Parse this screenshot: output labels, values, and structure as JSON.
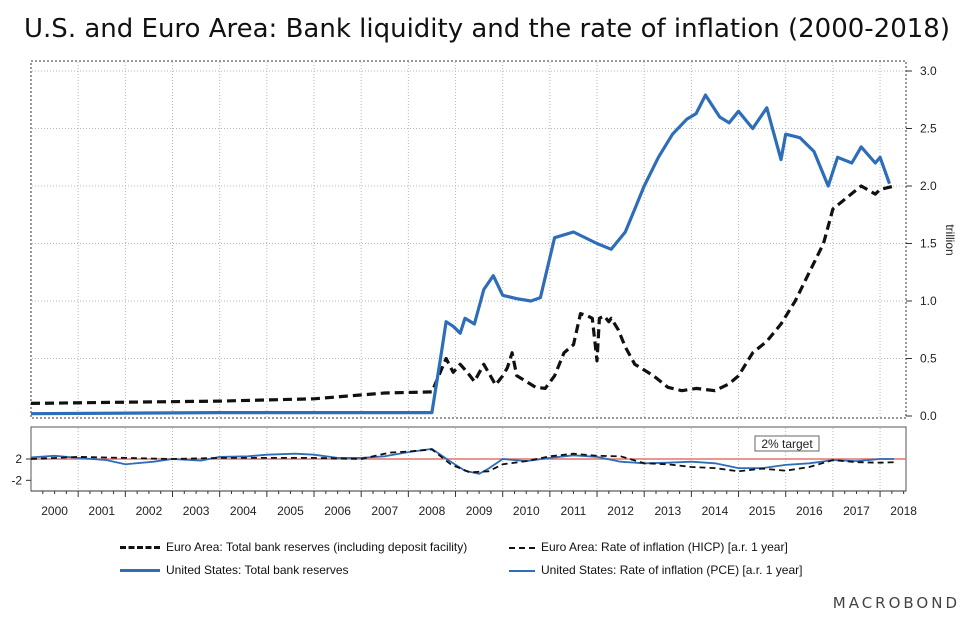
{
  "chart_data": {
    "type": "line",
    "title": "U.S. and Euro Area: Bank liquidity and the rate of inflation (2000-2018)",
    "colors": {
      "euro": "#111111",
      "us": "#2e6db8",
      "target": "#e0756f",
      "grid": "#b8b8b8"
    },
    "top_panel": {
      "ylabel": "trillion",
      "ylim": [
        0,
        3.0
      ],
      "yticks": [
        "0.0",
        "0.5",
        "1.0",
        "1.5",
        "2.0",
        "2.5",
        "3.0"
      ],
      "series": [
        {
          "name": "Euro Area: Total bank reserves (including deposit facility)",
          "style": "dashed-thick",
          "x": [
            2000,
            2002,
            2004,
            2006,
            2007.5,
            2008.5,
            2008.8,
            2008.95,
            2009.1,
            2009.25,
            2009.4,
            2009.6,
            2009.85,
            2010.0,
            2010.1,
            2010.2,
            2010.3,
            2010.5,
            2010.7,
            2010.9,
            2011.1,
            2011.3,
            2011.5,
            2011.65,
            2011.8,
            2011.9,
            2012.0,
            2012.05,
            2012.15,
            2012.25,
            2012.3,
            2012.45,
            2012.6,
            2012.8,
            2013.0,
            2013.2,
            2013.5,
            2013.8,
            2014.1,
            2014.5,
            2014.8,
            2015.0,
            2015.3,
            2015.6,
            2015.9,
            2016.2,
            2016.5,
            2016.8,
            2017.0,
            2017.3,
            2017.6,
            2017.9,
            2018.0,
            2018.3
          ],
          "values": [
            0.11,
            0.12,
            0.13,
            0.15,
            0.2,
            0.21,
            0.5,
            0.38,
            0.45,
            0.38,
            0.3,
            0.45,
            0.27,
            0.35,
            0.42,
            0.55,
            0.35,
            0.3,
            0.25,
            0.24,
            0.35,
            0.55,
            0.62,
            0.89,
            0.87,
            0.85,
            0.48,
            0.85,
            0.87,
            0.82,
            0.85,
            0.75,
            0.6,
            0.45,
            0.4,
            0.35,
            0.25,
            0.22,
            0.24,
            0.22,
            0.28,
            0.35,
            0.55,
            0.65,
            0.8,
            1.0,
            1.25,
            1.5,
            1.8,
            1.9,
            2.0,
            1.93,
            1.97,
            2.0
          ]
        },
        {
          "name": "United States: Total bank reserves",
          "style": "solid-thick",
          "x": [
            2000,
            2004,
            2008.5,
            2008.7,
            2008.8,
            2008.95,
            2009.1,
            2009.2,
            2009.4,
            2009.6,
            2009.8,
            2010.0,
            2010.3,
            2010.6,
            2010.8,
            2011.1,
            2011.5,
            2012.0,
            2012.3,
            2012.6,
            2012.8,
            2013.0,
            2013.3,
            2013.6,
            2013.9,
            2014.1,
            2014.3,
            2014.6,
            2014.8,
            2015.0,
            2015.3,
            2015.6,
            2015.9,
            2016.0,
            2016.3,
            2016.6,
            2016.9,
            2017.1,
            2017.4,
            2017.6,
            2017.9,
            2018.0,
            2018.2
          ],
          "values": [
            0.02,
            0.03,
            0.03,
            0.55,
            0.82,
            0.78,
            0.72,
            0.85,
            0.8,
            1.1,
            1.22,
            1.05,
            1.02,
            1.0,
            1.03,
            1.55,
            1.6,
            1.5,
            1.45,
            1.6,
            1.8,
            2.0,
            2.25,
            2.45,
            2.58,
            2.63,
            2.79,
            2.6,
            2.55,
            2.65,
            2.5,
            2.68,
            2.23,
            2.45,
            2.42,
            2.3,
            2.0,
            2.25,
            2.2,
            2.34,
            2.2,
            2.25,
            2.02
          ]
        }
      ]
    },
    "bottom_panel": {
      "yticks": [
        "2",
        "-2"
      ],
      "ylim": [
        -4,
        8
      ],
      "target": {
        "value": 2,
        "label": "2% target"
      },
      "series": [
        {
          "name": "Euro Area: Rate of inflation (HICP) [a.r. 1 year]",
          "style": "dashed-thin",
          "x": [
            2000,
            2001,
            2002,
            2003,
            2004,
            2005,
            2006,
            2007,
            2007.6,
            2008.0,
            2008.5,
            2008.9,
            2009.3,
            2009.7,
            2010.0,
            2010.5,
            2011.0,
            2011.5,
            2012.0,
            2012.5,
            2013.0,
            2013.5,
            2014.0,
            2014.5,
            2015.0,
            2015.5,
            2016.0,
            2016.5,
            2017.0,
            2017.5,
            2018.0,
            2018.3
          ],
          "values": [
            2.0,
            2.4,
            2.2,
            2.0,
            2.2,
            2.2,
            2.2,
            2.0,
            3.2,
            3.4,
            3.8,
            1.0,
            -0.5,
            -0.3,
            1.0,
            1.6,
            2.5,
            3.0,
            2.6,
            2.5,
            1.2,
            1.0,
            0.5,
            0.3,
            -0.3,
            0.2,
            -0.2,
            0.5,
            1.8,
            1.4,
            1.3,
            1.4
          ]
        },
        {
          "name": "United States: Rate of inflation (PCE) [a.r. 1 year]",
          "style": "solid-thin",
          "x": [
            2000,
            2000.5,
            2001,
            2001.6,
            2002,
            2002.6,
            2003,
            2003.6,
            2004,
            2004.6,
            2005,
            2005.6,
            2006,
            2006.5,
            2007,
            2007.5,
            2008,
            2008.5,
            2008.9,
            2009.2,
            2009.5,
            2009.7,
            2010.0,
            2010.5,
            2011.0,
            2011.5,
            2012.0,
            2012.5,
            2013.0,
            2013.5,
            2014.0,
            2014.5,
            2015.0,
            2015.5,
            2016.0,
            2016.5,
            2017.0,
            2017.5,
            2018.0,
            2018.3
          ],
          "values": [
            2.3,
            2.6,
            2.2,
            1.8,
            1.0,
            1.5,
            2.0,
            1.7,
            2.4,
            2.5,
            2.8,
            3.0,
            2.8,
            2.2,
            2.2,
            2.5,
            3.3,
            3.9,
            1.5,
            -0.2,
            -0.8,
            0.2,
            2.0,
            1.6,
            2.2,
            2.7,
            2.4,
            1.5,
            1.2,
            1.3,
            1.5,
            1.2,
            0.3,
            0.3,
            0.9,
            1.2,
            1.8,
            1.6,
            2.0,
            2.0
          ]
        }
      ]
    },
    "x_ticks": [
      "2000",
      "2001",
      "2002",
      "2003",
      "2004",
      "2005",
      "2006",
      "2007",
      "2008",
      "2009",
      "2010",
      "2011",
      "2012",
      "2013",
      "2014",
      "2015",
      "2016",
      "2017",
      "2018"
    ],
    "legend": [
      {
        "label": "Euro Area: Total bank reserves (including deposit facility)",
        "style": "dashed-thick"
      },
      {
        "label": "Euro Area: Rate of inflation (HICP) [a.r. 1 year]",
        "style": "dashed-thin"
      },
      {
        "label": "United States: Total bank reserves",
        "style": "solid-thick"
      },
      {
        "label": "United States: Rate of inflation (PCE) [a.r. 1 year]",
        "style": "solid-thin"
      }
    ]
  },
  "brand": "MACROBOND"
}
